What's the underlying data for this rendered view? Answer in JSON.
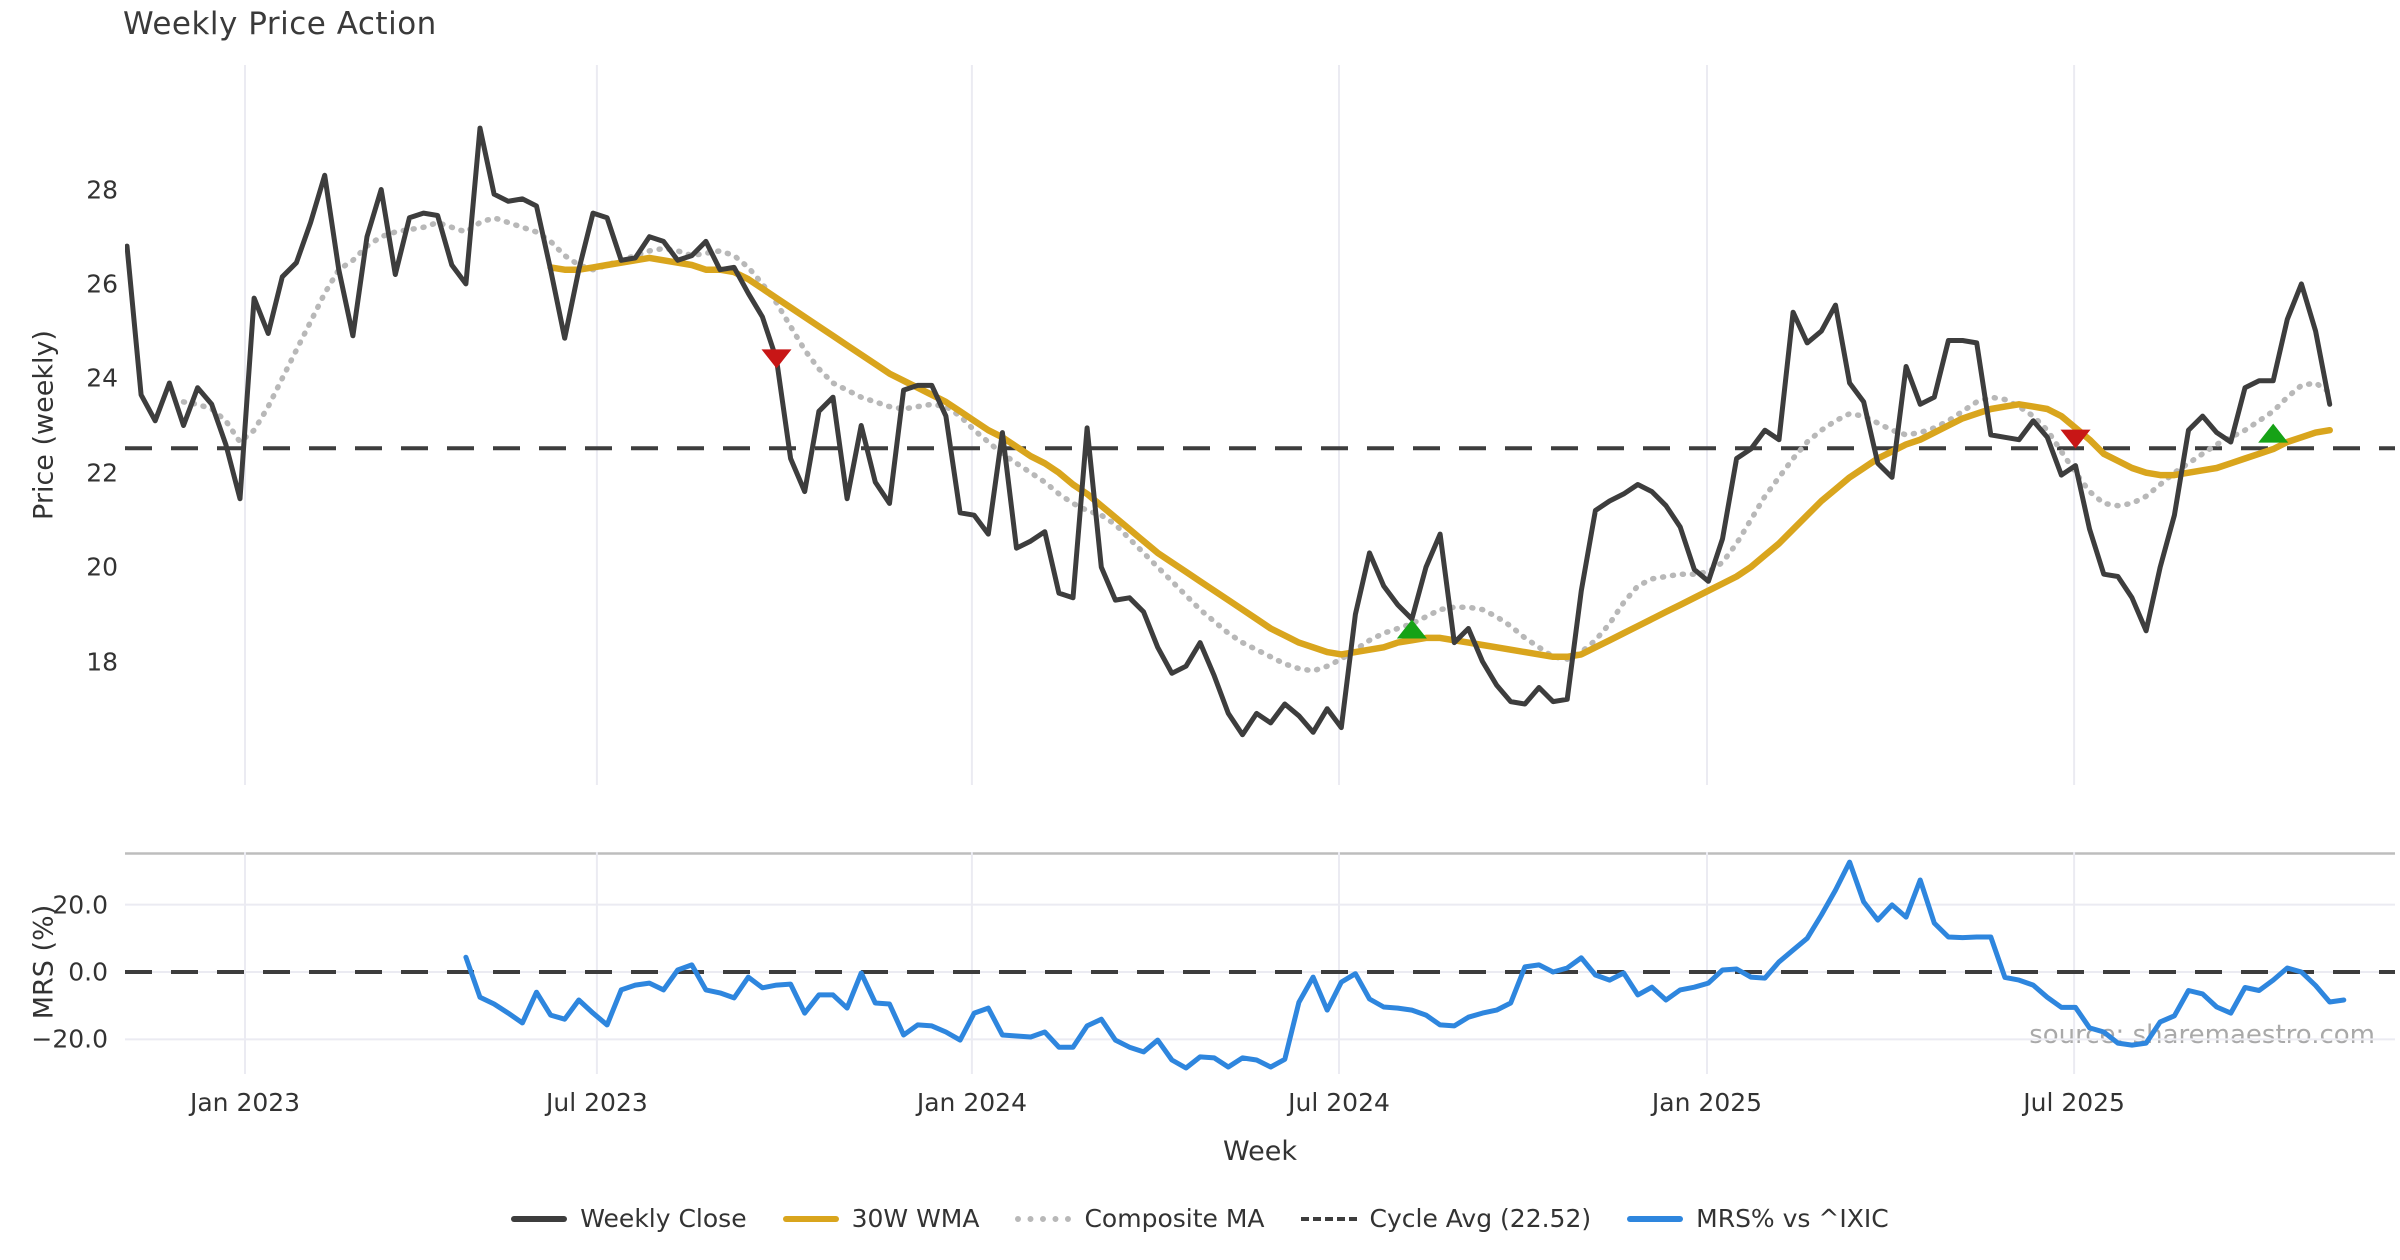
{
  "title": "Weekly Price Action",
  "source_note": "source: sharemaestro.com",
  "xlabel": "Week",
  "ylabel_price": "Price (weekly)",
  "ylabel_mrs": "MRS (%)",
  "colors": {
    "close": "#3d3d3d",
    "wma": "#d9a51d",
    "composite": "#b8b8b8",
    "cycle": "#3d3d3d",
    "mrs": "#2e86de",
    "sell": "#c81616",
    "buy": "#16a216",
    "grid": "#ebebf2",
    "spine": "#bdbdbd"
  },
  "legend": [
    {
      "label": "Weekly Close",
      "style": "close"
    },
    {
      "label": "30W WMA",
      "style": "wma"
    },
    {
      "label": "Composite MA",
      "style": "composite"
    },
    {
      "label": "Cycle Avg (22.52)",
      "style": "cycle"
    },
    {
      "label": "MRS% vs ^IXIC",
      "style": "mrs"
    }
  ],
  "chart_data": [
    {
      "type": "line",
      "title": "Weekly Price Action",
      "xlabel": "Week",
      "ylabel": "Price (weekly)",
      "ylim": [
        15.0,
        30.5
      ],
      "grid": "vertical-only",
      "x_ticks": [
        {
          "label": "Jan 2023",
          "week": 8.36
        },
        {
          "label": "Jul 2023",
          "week": 33.28
        },
        {
          "label": "Jan 2024",
          "week": 59.84
        },
        {
          "label": "Jul 2024",
          "week": 85.84
        },
        {
          "label": "Jan 2025",
          "week": 111.9
        },
        {
          "label": "Jul 2025",
          "week": 137.9
        }
      ],
      "y_ticks": [
        18,
        20,
        22,
        24,
        26,
        28
      ],
      "cycle_avg": 22.52,
      "series": [
        {
          "name": "Weekly Close",
          "style": "close",
          "start_week": 0,
          "values": [
            26.8,
            23.65,
            23.1,
            23.9,
            23.0,
            23.8,
            23.45,
            22.6,
            21.45,
            25.7,
            24.95,
            26.15,
            26.45,
            27.3,
            28.3,
            26.3,
            24.9,
            27.0,
            28.0,
            26.2,
            27.4,
            27.5,
            27.45,
            26.4,
            26.0,
            29.3,
            27.9,
            27.75,
            27.8,
            27.65,
            26.3,
            24.85,
            26.3,
            27.5,
            27.4,
            26.5,
            26.55,
            27.0,
            26.9,
            26.5,
            26.6,
            26.9,
            26.3,
            26.35,
            25.8,
            25.3,
            24.4,
            22.3,
            21.6,
            23.3,
            23.6,
            21.45,
            23.0,
            21.8,
            21.35,
            23.75,
            23.85,
            23.85,
            23.2,
            21.15,
            21.1,
            20.7,
            22.85,
            20.4,
            20.55,
            20.75,
            19.45,
            19.35,
            22.95,
            20.0,
            19.3,
            19.35,
            19.05,
            18.3,
            17.75,
            17.9,
            18.4,
            17.7,
            16.9,
            16.45,
            16.9,
            16.7,
            17.1,
            16.85,
            16.5,
            17.0,
            16.6,
            19.0,
            20.3,
            19.6,
            19.2,
            18.9,
            20.0,
            20.7,
            18.4,
            18.7,
            18.0,
            17.5,
            17.15,
            17.1,
            17.45,
            17.15,
            17.2,
            19.5,
            21.2,
            21.4,
            21.55,
            21.75,
            21.6,
            21.3,
            20.85,
            19.95,
            19.7,
            20.6,
            22.3,
            22.5,
            22.9,
            22.7,
            25.4,
            24.75,
            25.0,
            25.55,
            23.9,
            23.5,
            22.2,
            21.9,
            24.25,
            23.45,
            23.6,
            24.8,
            24.8,
            24.75,
            22.8,
            22.75,
            22.7,
            23.1,
            22.75,
            21.95,
            22.15,
            20.8,
            19.85,
            19.8,
            19.35,
            18.65,
            20.0,
            21.1,
            22.9,
            23.2,
            22.85,
            22.65,
            23.8,
            23.95,
            23.95,
            25.25,
            26.0,
            25.0,
            23.45
          ]
        },
        {
          "name": "30W WMA",
          "style": "wma",
          "start_week": 30,
          "values": [
            26.35,
            26.3,
            26.3,
            26.35,
            26.4,
            26.45,
            26.5,
            26.55,
            26.5,
            26.45,
            26.4,
            26.3,
            26.3,
            26.25,
            26.1,
            25.9,
            25.7,
            25.5,
            25.3,
            25.1,
            24.9,
            24.7,
            24.5,
            24.3,
            24.1,
            23.95,
            23.8,
            23.65,
            23.5,
            23.3,
            23.1,
            22.9,
            22.75,
            22.55,
            22.35,
            22.2,
            22.0,
            21.75,
            21.55,
            21.3,
            21.05,
            20.8,
            20.55,
            20.3,
            20.1,
            19.9,
            19.7,
            19.5,
            19.3,
            19.1,
            18.9,
            18.7,
            18.55,
            18.4,
            18.3,
            18.2,
            18.15,
            18.2,
            18.25,
            18.3,
            18.4,
            18.45,
            18.5,
            18.5,
            18.45,
            18.4,
            18.35,
            18.3,
            18.25,
            18.2,
            18.15,
            18.1,
            18.1,
            18.15,
            18.3,
            18.45,
            18.6,
            18.75,
            18.9,
            19.05,
            19.2,
            19.35,
            19.5,
            19.65,
            19.8,
            20.0,
            20.25,
            20.5,
            20.8,
            21.1,
            21.4,
            21.65,
            21.9,
            22.1,
            22.3,
            22.45,
            22.6,
            22.7,
            22.85,
            23.0,
            23.15,
            23.25,
            23.35,
            23.4,
            23.45,
            23.4,
            23.35,
            23.2,
            22.95,
            22.7,
            22.4,
            22.25,
            22.1,
            22.0,
            21.95,
            21.95,
            22.0,
            22.05,
            22.1,
            22.2,
            22.3,
            22.4,
            22.5,
            22.65,
            22.75,
            22.85,
            22.9
          ]
        },
        {
          "name": "Composite MA",
          "style": "composite",
          "start_week": 4,
          "values": [
            23.5,
            23.45,
            23.35,
            23.1,
            22.65,
            22.9,
            23.4,
            24.0,
            24.6,
            25.2,
            25.8,
            26.3,
            26.5,
            26.8,
            27.0,
            27.1,
            27.15,
            27.2,
            27.3,
            27.2,
            27.1,
            27.3,
            27.4,
            27.3,
            27.2,
            27.1,
            26.9,
            26.6,
            26.4,
            26.3,
            26.4,
            26.5,
            26.6,
            26.7,
            26.75,
            26.7,
            26.6,
            26.65,
            26.7,
            26.6,
            26.35,
            26.0,
            25.6,
            25.1,
            24.6,
            24.2,
            23.9,
            23.75,
            23.6,
            23.5,
            23.4,
            23.35,
            23.4,
            23.45,
            23.4,
            23.2,
            22.9,
            22.65,
            22.4,
            22.2,
            22.0,
            21.8,
            21.55,
            21.35,
            21.2,
            21.1,
            20.9,
            20.6,
            20.3,
            20.0,
            19.7,
            19.4,
            19.1,
            18.85,
            18.6,
            18.4,
            18.25,
            18.1,
            17.95,
            17.85,
            17.8,
            17.9,
            18.05,
            18.25,
            18.45,
            18.6,
            18.7,
            18.8,
            18.95,
            19.1,
            19.15,
            19.15,
            19.1,
            18.95,
            18.75,
            18.5,
            18.3,
            18.1,
            18.05,
            18.2,
            18.45,
            18.8,
            19.25,
            19.6,
            19.75,
            19.8,
            19.85,
            19.85,
            19.9,
            20.1,
            20.5,
            21.0,
            21.5,
            21.9,
            22.3,
            22.65,
            22.9,
            23.1,
            23.25,
            23.2,
            23.05,
            22.9,
            22.8,
            22.85,
            22.95,
            23.1,
            23.3,
            23.5,
            23.6,
            23.55,
            23.4,
            23.2,
            22.9,
            22.45,
            22.0,
            21.6,
            21.35,
            21.3,
            21.35,
            21.5,
            21.75,
            22.0,
            22.2,
            22.4,
            22.6,
            22.75,
            22.9,
            23.1,
            23.3,
            23.6,
            23.85,
            23.9,
            23.7
          ]
        }
      ],
      "markers": [
        {
          "type": "sell",
          "week": 46,
          "value": 24.4
        },
        {
          "type": "buy",
          "week": 91,
          "value": 18.7
        },
        {
          "type": "sell",
          "week": 138,
          "value": 22.7
        },
        {
          "type": "buy",
          "week": 152,
          "value": 22.85
        }
      ]
    },
    {
      "type": "line",
      "ylabel": "MRS (%)",
      "ylim": [
        -30,
        35
      ],
      "zero_line": 0,
      "y_ticks": [
        {
          "label": "20.0",
          "value": 20
        },
        {
          "label": "0.0",
          "value": 0
        },
        {
          "label": "−20.0",
          "value": -20
        }
      ],
      "series": [
        {
          "name": "MRS% vs ^IXIC",
          "style": "mrs",
          "start_week": 24,
          "values": [
            4.4,
            -7.5,
            -9.5,
            -12.2,
            -15.1,
            -6,
            -12.8,
            -14,
            -8.3,
            -12.2,
            -15.7,
            -5.3,
            -3.9,
            -3.3,
            -5.3,
            0.6,
            2.1,
            -5.3,
            -6.2,
            -7.7,
            -1.5,
            -4.7,
            -3.9,
            -3.6,
            -12.2,
            -6.8,
            -6.8,
            -10.7,
            -0.3,
            -9.2,
            -9.5,
            -18.7,
            -15.7,
            -16,
            -17.8,
            -20.2,
            -12.2,
            -10.7,
            -18.7,
            -19,
            -19.3,
            -17.8,
            -22.3,
            -22.3,
            -16,
            -14,
            -20.2,
            -22.3,
            -23.7,
            -20.2,
            -26.1,
            -28.5,
            -25.2,
            -25.5,
            -28.2,
            -25.5,
            -26.1,
            -28.2,
            -25.9,
            -9,
            -1.5,
            -11.3,
            -3,
            -0.5,
            -8,
            -10.4,
            -10.7,
            -11.3,
            -12.8,
            -15.7,
            -16,
            -13.4,
            -12.2,
            -11.3,
            -9.2,
            1.5,
            2.1,
            0,
            1.2,
            4.2,
            -0.9,
            -2.4,
            -0.3,
            -6.8,
            -4.5,
            -8.3,
            -5.3,
            -4.5,
            -3.3,
            0.6,
            0.9,
            -1.5,
            -1.8,
            3.0,
            6.5,
            10,
            16.9,
            24.3,
            32.6,
            20.8,
            15.4,
            19.9,
            16.3,
            27.3,
            14.5,
            10.4,
            10.2,
            10.4,
            10.4,
            -1.6,
            -2.4,
            -3.9,
            -7.5,
            -10.5,
            -10.5,
            -16.6,
            -17.8,
            -21.1,
            -21.7,
            -21.1,
            -14.8,
            -13,
            -5.5,
            -6.5,
            -10.4,
            -12.2,
            -4.6,
            -5.5,
            -2.4,
            1.2,
            0,
            -4,
            -8.9,
            -8.3
          ]
        }
      ]
    }
  ]
}
